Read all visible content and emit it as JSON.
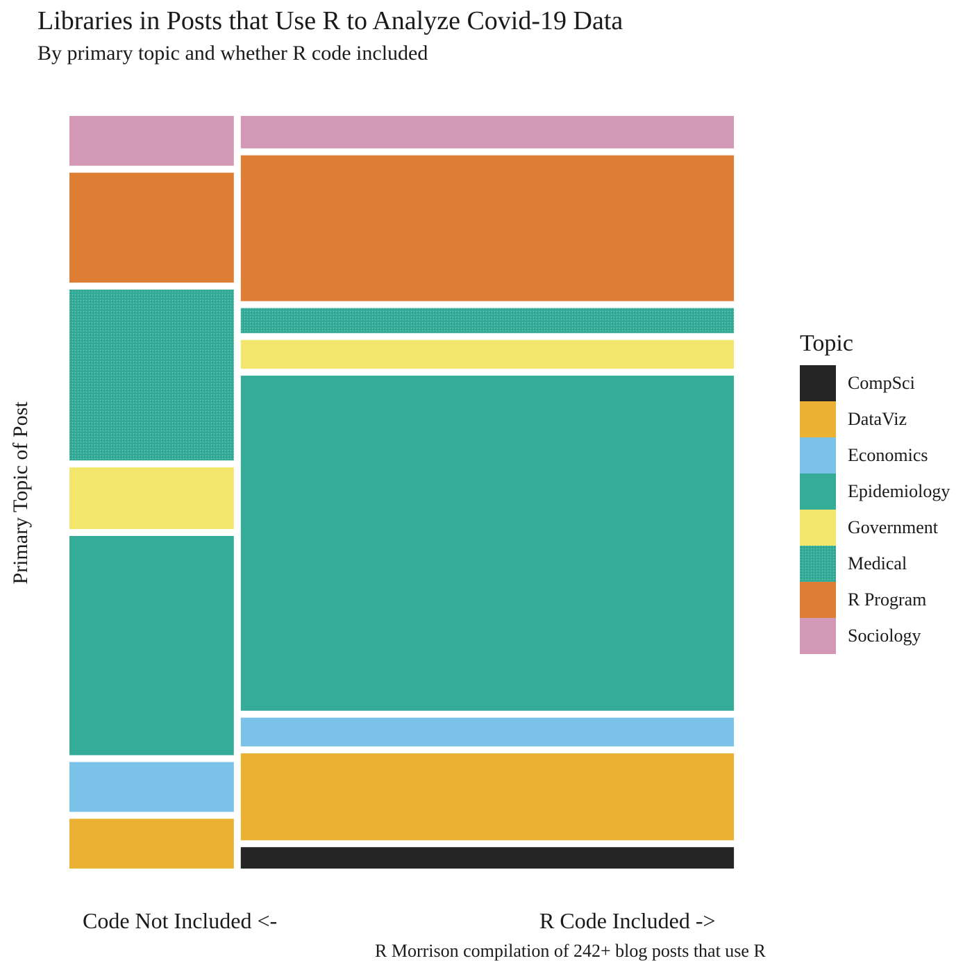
{
  "chart_data": {
    "type": "mosaic",
    "title": "Libraries in Posts that Use R to Analyze Covid-19 Data",
    "subtitle": "By primary topic and whether R code included",
    "ylabel": "Primary Topic of Post",
    "x_left_label": "Code Not Included <-",
    "x_right_label": "R Code Included ->",
    "caption": "R Morrison compilation of 242+ blog posts that use R",
    "legend_title": "Topic",
    "legend_position": "right",
    "topics": [
      {
        "name": "CompSci",
        "color": "#252525"
      },
      {
        "name": "DataViz",
        "color": "#EAB133"
      },
      {
        "name": "Economics",
        "color": "#7AC2E8"
      },
      {
        "name": "Epidemiology",
        "color": "#35AC97"
      },
      {
        "name": "Government",
        "color": "#F2E76C"
      },
      {
        "name": "Medical",
        "color": "#35AC97",
        "pattern": "stipple"
      },
      {
        "name": "R Program",
        "color": "#DD7E34"
      },
      {
        "name": "Sociology",
        "color": "#D398B6"
      }
    ],
    "columns": [
      {
        "group": "Code Not Included",
        "share": 0.25,
        "proportions": {
          "CompSci": 0.0,
          "DataViz": 0.067,
          "Economics": 0.067,
          "Epidemiology": 0.295,
          "Government": 0.083,
          "Medical": 0.23,
          "R Program": 0.148,
          "Sociology": 0.067
        }
      },
      {
        "group": "R Code Included",
        "share": 0.75,
        "proportions": {
          "CompSci": 0.029,
          "DataViz": 0.118,
          "Economics": 0.039,
          "Epidemiology": 0.455,
          "Government": 0.039,
          "Medical": 0.034,
          "R Program": 0.198,
          "Sociology": 0.044
        }
      }
    ]
  }
}
